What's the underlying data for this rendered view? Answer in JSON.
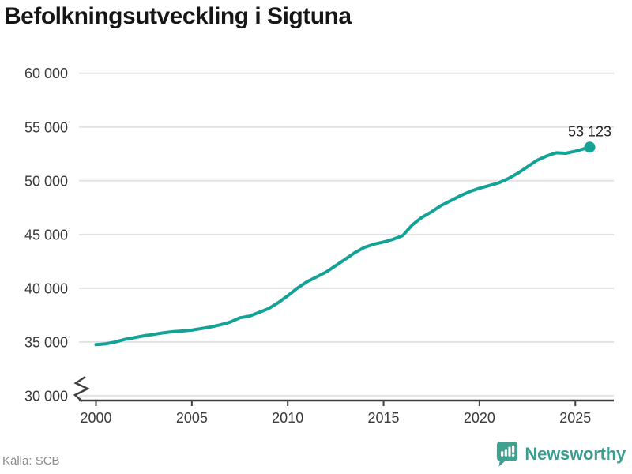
{
  "title": "Befolkningsutveckling i Sigtuna",
  "source": "Källa: SCB",
  "branding": {
    "wordmark": "Newsworthy",
    "logo_icon": "newsworthy-speech-bubble-bar-chart-icon",
    "badge_color": "#41a08f",
    "wordmark_color": "#3c9d8e"
  },
  "colors": {
    "line": "#13a296",
    "dot": "#13a296",
    "grid": "#e3e3e3",
    "axis": "#3f3f3f",
    "tick_text": "#3a3a3a",
    "title_text": "#161616",
    "annotation_text": "#222222",
    "source_text": "#8b8b8b"
  },
  "chart_data": {
    "type": "line",
    "title": "Befolkningsutveckling i Sigtuna",
    "xlabel": "",
    "ylabel": "",
    "xlim": [
      1999.1,
      2027
    ],
    "ylim": [
      30000,
      60000
    ],
    "y_axis_break": true,
    "grid": "horizontal",
    "legend": "none",
    "x_ticks": [
      {
        "value": 2000,
        "label": "2000"
      },
      {
        "value": 2005,
        "label": "2005"
      },
      {
        "value": 2010,
        "label": "2010"
      },
      {
        "value": 2015,
        "label": "2015"
      },
      {
        "value": 2020,
        "label": "2020"
      },
      {
        "value": 2025,
        "label": "2025"
      }
    ],
    "y_ticks": [
      {
        "value": 30000,
        "label": "30 000"
      },
      {
        "value": 35000,
        "label": "35 000"
      },
      {
        "value": 40000,
        "label": "40 000"
      },
      {
        "value": 45000,
        "label": "45 000"
      },
      {
        "value": 50000,
        "label": "50 000"
      },
      {
        "value": 55000,
        "label": "55 000"
      },
      {
        "value": 60000,
        "label": "60 000"
      }
    ],
    "series": [
      {
        "points": [
          [
            2000,
            34750
          ],
          [
            2000.5,
            34820
          ],
          [
            2001,
            35000
          ],
          [
            2001.5,
            35230
          ],
          [
            2002,
            35400
          ],
          [
            2002.5,
            35570
          ],
          [
            2003,
            35700
          ],
          [
            2003.5,
            35840
          ],
          [
            2004,
            35950
          ],
          [
            2004.5,
            36020
          ],
          [
            2005,
            36100
          ],
          [
            2005.5,
            36250
          ],
          [
            2006,
            36400
          ],
          [
            2006.5,
            36600
          ],
          [
            2007,
            36850
          ],
          [
            2007.5,
            37250
          ],
          [
            2008,
            37400
          ],
          [
            2008.5,
            37750
          ],
          [
            2009,
            38100
          ],
          [
            2009.5,
            38650
          ],
          [
            2010,
            39300
          ],
          [
            2010.5,
            40000
          ],
          [
            2011,
            40600
          ],
          [
            2011.5,
            41050
          ],
          [
            2012,
            41500
          ],
          [
            2012.5,
            42100
          ],
          [
            2013,
            42700
          ],
          [
            2013.5,
            43300
          ],
          [
            2014,
            43800
          ],
          [
            2014.5,
            44100
          ],
          [
            2015,
            44300
          ],
          [
            2015.5,
            44550
          ],
          [
            2016,
            44900
          ],
          [
            2016.5,
            45900
          ],
          [
            2017,
            46600
          ],
          [
            2017.5,
            47100
          ],
          [
            2018,
            47700
          ],
          [
            2018.5,
            48150
          ],
          [
            2019,
            48600
          ],
          [
            2019.5,
            49000
          ],
          [
            2020,
            49300
          ],
          [
            2020.5,
            49550
          ],
          [
            2021,
            49800
          ],
          [
            2021.5,
            50200
          ],
          [
            2022,
            50700
          ],
          [
            2022.5,
            51300
          ],
          [
            2023,
            51900
          ],
          [
            2023.5,
            52300
          ],
          [
            2024,
            52600
          ],
          [
            2024.5,
            52560
          ],
          [
            2025,
            52750
          ],
          [
            2025.4,
            52950
          ],
          [
            2025.75,
            53123
          ]
        ]
      }
    ],
    "annotation": {
      "x": 2025.75,
      "y": 53123,
      "label": "53 123"
    }
  }
}
